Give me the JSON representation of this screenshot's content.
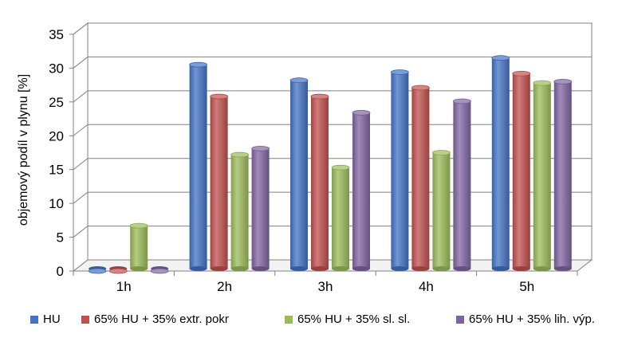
{
  "chart_data": {
    "type": "bar",
    "title": "",
    "xlabel": "",
    "ylabel": "objemový podíl v plynu [%]",
    "ylim": [
      0,
      35
    ],
    "yticks": [
      0,
      5,
      10,
      15,
      20,
      25,
      30,
      35
    ],
    "grid": true,
    "legend_position": "bottom",
    "categories": [
      "1h",
      "2h",
      "3h",
      "4h",
      "5h"
    ],
    "series": [
      {
        "name": "HU",
        "color": "#4472C4",
        "values": [
          0,
          30.5,
          28.2,
          29.4,
          31.5
        ]
      },
      {
        "name": "65% HU + 35% extr. pokr",
        "color": "#C0504D",
        "values": [
          0,
          25.8,
          25.8,
          27.1,
          29.2
        ]
      },
      {
        "name": "65% HU + 35% sl. sl.",
        "color": "#9BBB59",
        "values": [
          6.7,
          17.2,
          15.3,
          17.5,
          27.8
        ]
      },
      {
        "name": "65% HU + 35% lih. výp.",
        "color": "#8064A2",
        "values": [
          0,
          18.1,
          23.4,
          25.1,
          28.0
        ]
      }
    ]
  }
}
